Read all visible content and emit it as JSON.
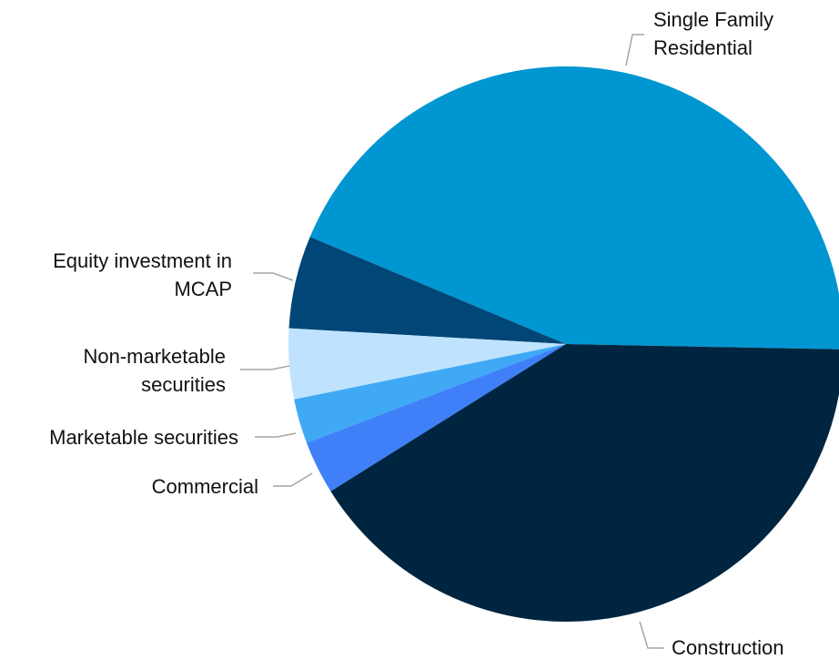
{
  "chart_data": {
    "type": "pie",
    "categories": [
      "Single Family Residential",
      "Equity investment in MCAP",
      "Non-marketable securities",
      "Marketable securities",
      "Commercial",
      "Construction"
    ],
    "values": [
      44,
      5.4,
      4.1,
      2.6,
      3.1,
      40.8
    ],
    "colors": [
      "#0096d1",
      "#004677",
      "#bfe3ff",
      "#3fa9f5",
      "#3f80f9",
      "#002540"
    ]
  }
}
